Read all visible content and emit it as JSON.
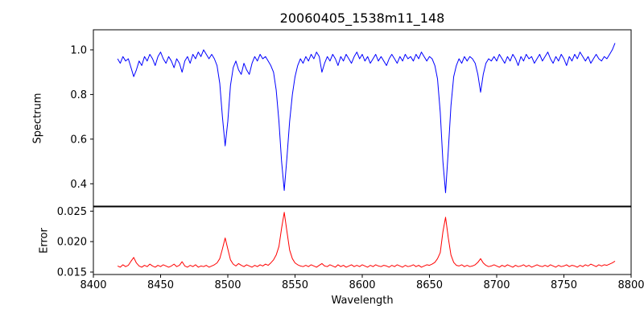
{
  "title": "20060405_1538m11_148",
  "chart_data": {
    "type": "line",
    "title": "20060405_1538m11_148",
    "xlabel": "Wavelength",
    "xlim": [
      8400,
      8800
    ],
    "x_start": 8418,
    "x_step": 2,
    "xticks": [
      8400,
      8450,
      8500,
      8550,
      8600,
      8650,
      8700,
      8750,
      8800
    ],
    "xtick_labels": [
      "8400",
      "8450",
      "8500",
      "8550",
      "8600",
      "8650",
      "8700",
      "8750",
      "8800"
    ],
    "grid": false,
    "legend": "none",
    "panels": [
      {
        "name": "spectrum",
        "ylabel": "Spectrum",
        "color": "#0000ff",
        "ylim": [
          0.3,
          1.09
        ],
        "yticks": [
          0.4,
          0.6,
          0.8,
          1.0
        ],
        "ytick_labels": [
          "0.4",
          "0.6",
          "0.8",
          "1.0"
        ],
        "y": [
          0.96,
          0.94,
          0.97,
          0.95,
          0.96,
          0.92,
          0.88,
          0.91,
          0.95,
          0.93,
          0.97,
          0.95,
          0.98,
          0.96,
          0.93,
          0.97,
          0.99,
          0.96,
          0.94,
          0.97,
          0.95,
          0.92,
          0.96,
          0.94,
          0.9,
          0.95,
          0.97,
          0.94,
          0.98,
          0.96,
          0.99,
          0.97,
          1.0,
          0.98,
          0.96,
          0.98,
          0.96,
          0.93,
          0.85,
          0.7,
          0.57,
          0.68,
          0.84,
          0.92,
          0.95,
          0.91,
          0.89,
          0.94,
          0.91,
          0.89,
          0.94,
          0.97,
          0.95,
          0.98,
          0.96,
          0.97,
          0.95,
          0.93,
          0.9,
          0.82,
          0.68,
          0.5,
          0.37,
          0.52,
          0.68,
          0.8,
          0.88,
          0.93,
          0.96,
          0.94,
          0.97,
          0.95,
          0.98,
          0.96,
          0.99,
          0.97,
          0.9,
          0.94,
          0.97,
          0.95,
          0.98,
          0.96,
          0.93,
          0.97,
          0.95,
          0.98,
          0.96,
          0.94,
          0.97,
          0.99,
          0.96,
          0.98,
          0.95,
          0.97,
          0.94,
          0.96,
          0.98,
          0.95,
          0.97,
          0.95,
          0.93,
          0.96,
          0.98,
          0.96,
          0.94,
          0.97,
          0.95,
          0.98,
          0.96,
          0.97,
          0.95,
          0.98,
          0.96,
          0.99,
          0.97,
          0.95,
          0.97,
          0.96,
          0.93,
          0.87,
          0.72,
          0.5,
          0.36,
          0.55,
          0.75,
          0.88,
          0.93,
          0.96,
          0.94,
          0.97,
          0.95,
          0.97,
          0.96,
          0.94,
          0.89,
          0.81,
          0.89,
          0.94,
          0.96,
          0.95,
          0.97,
          0.95,
          0.98,
          0.96,
          0.94,
          0.97,
          0.95,
          0.98,
          0.96,
          0.93,
          0.97,
          0.95,
          0.98,
          0.96,
          0.97,
          0.94,
          0.96,
          0.98,
          0.95,
          0.97,
          0.99,
          0.96,
          0.94,
          0.97,
          0.95,
          0.98,
          0.96,
          0.93,
          0.97,
          0.95,
          0.98,
          0.96,
          0.99,
          0.97,
          0.95,
          0.97,
          0.94,
          0.96,
          0.98,
          0.96,
          0.95,
          0.97,
          0.96,
          0.98,
          1.0,
          1.03
        ]
      },
      {
        "name": "error",
        "ylabel": "Error",
        "color": "#ff0000",
        "ylim": [
          0.0146,
          0.0257
        ],
        "yticks": [
          0.015,
          0.02,
          0.025
        ],
        "ytick_labels": [
          "0.015",
          "0.020",
          "0.025"
        ],
        "y": [
          0.016,
          0.0158,
          0.0162,
          0.0159,
          0.0161,
          0.0168,
          0.0174,
          0.0165,
          0.016,
          0.0158,
          0.0161,
          0.0159,
          0.0163,
          0.016,
          0.0158,
          0.0161,
          0.0159,
          0.0162,
          0.016,
          0.0158,
          0.016,
          0.0163,
          0.0159,
          0.0161,
          0.0167,
          0.016,
          0.0158,
          0.0161,
          0.0159,
          0.0162,
          0.0158,
          0.016,
          0.0159,
          0.0161,
          0.0158,
          0.016,
          0.0162,
          0.0165,
          0.0172,
          0.0188,
          0.0206,
          0.0188,
          0.017,
          0.0163,
          0.016,
          0.0164,
          0.0161,
          0.0159,
          0.0162,
          0.016,
          0.0158,
          0.0161,
          0.0159,
          0.0162,
          0.016,
          0.0163,
          0.0161,
          0.0165,
          0.017,
          0.0178,
          0.0192,
          0.0222,
          0.0248,
          0.0216,
          0.0186,
          0.0172,
          0.0165,
          0.0162,
          0.016,
          0.0159,
          0.0161,
          0.0159,
          0.0162,
          0.016,
          0.0158,
          0.0161,
          0.0164,
          0.016,
          0.0159,
          0.0162,
          0.016,
          0.0158,
          0.0162,
          0.0159,
          0.0161,
          0.0158,
          0.016,
          0.0162,
          0.0159,
          0.0161,
          0.0159,
          0.0162,
          0.016,
          0.0158,
          0.0161,
          0.0159,
          0.0162,
          0.016,
          0.0159,
          0.0161,
          0.016,
          0.0158,
          0.0161,
          0.0159,
          0.0162,
          0.016,
          0.0158,
          0.0161,
          0.0159,
          0.016,
          0.0162,
          0.0159,
          0.0161,
          0.0158,
          0.016,
          0.0162,
          0.0161,
          0.0163,
          0.0166,
          0.0172,
          0.0182,
          0.0216,
          0.024,
          0.0206,
          0.0178,
          0.0166,
          0.0161,
          0.016,
          0.0162,
          0.0159,
          0.0161,
          0.0159,
          0.016,
          0.0162,
          0.0166,
          0.0172,
          0.0165,
          0.0161,
          0.0159,
          0.016,
          0.0162,
          0.016,
          0.0158,
          0.0161,
          0.0159,
          0.0162,
          0.016,
          0.0158,
          0.0161,
          0.0159,
          0.016,
          0.0162,
          0.0159,
          0.0161,
          0.0158,
          0.016,
          0.0162,
          0.016,
          0.0159,
          0.0161,
          0.0159,
          0.0162,
          0.016,
          0.0158,
          0.0161,
          0.0159,
          0.016,
          0.0162,
          0.0159,
          0.0161,
          0.016,
          0.0158,
          0.0161,
          0.0159,
          0.0162,
          0.016,
          0.0163,
          0.0161,
          0.0159,
          0.0162,
          0.016,
          0.0162,
          0.0161,
          0.0163,
          0.0165,
          0.0168
        ]
      }
    ]
  }
}
